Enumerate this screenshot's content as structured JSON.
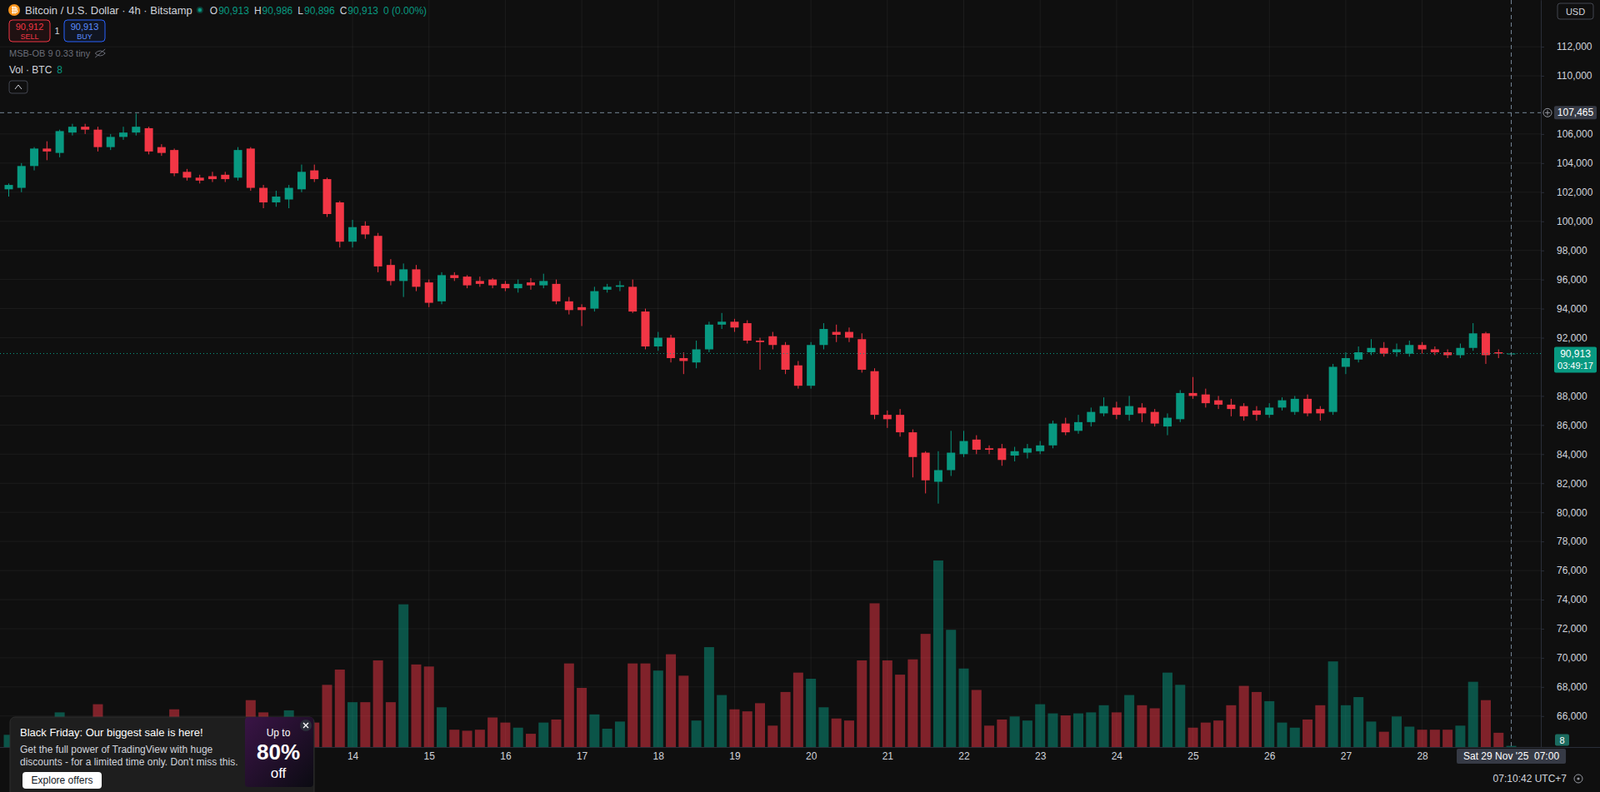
{
  "chart_data": {
    "type": "candlestick",
    "title": "Bitcoin / U.S. Dollar · 4h · Bitstamp",
    "categories": [
      null,
      null,
      null,
      null,
      null,
      null,
      null,
      null,
      null,
      null,
      null,
      null,
      null,
      null,
      null,
      null,
      null,
      null,
      null,
      null,
      null,
      null,
      null,
      null,
      null,
      null,
      null,
      "14",
      null,
      null,
      null,
      null,
      null,
      "15",
      null,
      null,
      null,
      null,
      null,
      "16",
      null,
      null,
      null,
      null,
      null,
      "17",
      null,
      null,
      null,
      null,
      null,
      "18",
      null,
      null,
      null,
      null,
      null,
      "19",
      null,
      null,
      null,
      null,
      null,
      "20",
      null,
      null,
      null,
      null,
      null,
      "21",
      null,
      null,
      null,
      null,
      null,
      "22",
      null,
      null,
      null,
      null,
      null,
      "23",
      null,
      null,
      null,
      null,
      null,
      "24",
      null,
      null,
      null,
      null,
      null,
      "25",
      null,
      null,
      null,
      null,
      null,
      "26",
      null,
      null,
      null,
      null,
      null,
      "27",
      null,
      null,
      null,
      null,
      null,
      "28",
      null,
      null,
      null,
      null,
      null,
      null,
      null
    ],
    "series": [
      {
        "type": "candlestick",
        "open": [
          102200,
          102300,
          103800,
          105000,
          104700,
          106100,
          106500,
          106300,
          105100,
          105800,
          106100,
          106400,
          105100,
          104900,
          103400,
          103000,
          103100,
          103200,
          103000,
          105000,
          102300,
          101300,
          101500,
          102200,
          103500,
          102900,
          101300,
          98600,
          99700,
          99000,
          97000,
          95900,
          96700,
          95800,
          94500,
          96300,
          96200,
          95900,
          96000,
          95700,
          95400,
          95800,
          95600,
          95700,
          94500,
          94100,
          94000,
          95300,
          95500,
          95500,
          93800,
          91400,
          92000,
          90600,
          90300,
          91200,
          92900,
          93100,
          93000,
          91800,
          92100,
          91500,
          90100,
          88700,
          91500,
          92400,
          92400,
          91900,
          89700,
          86700,
          86700,
          85500,
          84100,
          82100,
          82900,
          84000,
          85000,
          84400,
          84400,
          83900,
          84100,
          84200,
          84600,
          86100,
          85600,
          86200,
          86800,
          87200,
          86700,
          87200,
          86900,
          85900,
          86400,
          88200,
          88100,
          87700,
          87400,
          87300,
          87000,
          86700,
          87200,
          86900,
          87800,
          87100,
          86900,
          90000,
          90500,
          91000,
          91300,
          91000,
          90900,
          91500,
          91200,
          91000,
          90800,
          91300,
          92300,
          91000,
          90913
        ],
        "high": [
          102600,
          104000,
          105100,
          105500,
          106300,
          106700,
          106700,
          106500,
          106000,
          106500,
          107400,
          106500,
          105300,
          105000,
          103600,
          103200,
          103400,
          103400,
          105100,
          105100,
          102500,
          102100,
          102500,
          103900,
          103900,
          103000,
          101400,
          100100,
          100000,
          99200,
          97400,
          97100,
          97000,
          96000,
          96500,
          96500,
          96300,
          96200,
          96100,
          95900,
          96000,
          96100,
          96400,
          96000,
          94800,
          94300,
          95500,
          95700,
          95900,
          96000,
          94000,
          92400,
          92200,
          91000,
          91800,
          93100,
          93700,
          93300,
          93200,
          92000,
          92400,
          91700,
          90400,
          91700,
          93000,
          92900,
          92700,
          92300,
          89900,
          87000,
          87100,
          85700,
          84200,
          84200,
          85600,
          85600,
          85300,
          84600,
          84700,
          84500,
          84700,
          84900,
          86300,
          86500,
          86700,
          87200,
          87900,
          87600,
          88000,
          87500,
          87100,
          86800,
          88400,
          89300,
          88500,
          88000,
          87800,
          87500,
          87300,
          87500,
          87900,
          88000,
          88100,
          87300,
          90200,
          91000,
          91400,
          91900,
          91700,
          91600,
          91800,
          91700,
          91400,
          91200,
          91600,
          93000,
          92400,
          91200,
          90986
        ],
        "low": [
          101700,
          102000,
          103500,
          104200,
          104400,
          105900,
          106000,
          104800,
          104900,
          105600,
          105900,
          104600,
          104500,
          103100,
          102800,
          102600,
          102700,
          102700,
          102800,
          102100,
          100900,
          101000,
          100900,
          102000,
          102700,
          100300,
          98200,
          98200,
          98800,
          96500,
          95600,
          94800,
          95200,
          94100,
          94300,
          95900,
          95400,
          95500,
          95400,
          95200,
          95100,
          95300,
          95400,
          94300,
          93600,
          92800,
          93800,
          95100,
          95200,
          93700,
          91200,
          91100,
          90300,
          89500,
          89900,
          91000,
          92600,
          92400,
          91600,
          89800,
          91200,
          89500,
          88500,
          88500,
          91200,
          91700,
          91700,
          89600,
          86400,
          85800,
          85200,
          82400,
          81300,
          80600,
          82500,
          83800,
          84000,
          84000,
          83200,
          83500,
          83700,
          84000,
          84400,
          85300,
          85400,
          85900,
          86600,
          86400,
          86300,
          86200,
          85900,
          85300,
          86200,
          87800,
          87200,
          87100,
          86600,
          86300,
          86300,
          86500,
          87000,
          86700,
          86600,
          86300,
          86700,
          89500,
          90300,
          90800,
          90700,
          90700,
          90700,
          90900,
          90800,
          90600,
          90600,
          91100,
          90200,
          90600,
          90896
        ],
        "close": [
          102500,
          103800,
          105000,
          104800,
          106200,
          106500,
          106300,
          105100,
          105800,
          106100,
          106500,
          104800,
          104700,
          103300,
          103000,
          102800,
          102900,
          102900,
          104900,
          102300,
          101300,
          101700,
          102300,
          103400,
          102900,
          100500,
          98600,
          99600,
          99100,
          96900,
          95900,
          96700,
          95500,
          94400,
          96300,
          96100,
          95600,
          95700,
          95600,
          95400,
          95700,
          95600,
          95900,
          94500,
          93900,
          93900,
          95200,
          95500,
          95600,
          93800,
          91400,
          92000,
          90600,
          90400,
          91200,
          92900,
          93100,
          92700,
          91800,
          91700,
          91500,
          89800,
          88700,
          91500,
          92600,
          92200,
          92000,
          89800,
          86700,
          86400,
          85500,
          83800,
          82200,
          82900,
          84100,
          84900,
          84300,
          84300,
          83600,
          84200,
          84400,
          84600,
          86100,
          85500,
          86200,
          86900,
          87300,
          86700,
          87300,
          86800,
          86100,
          86500,
          88200,
          88000,
          87500,
          87400,
          87100,
          86600,
          86700,
          87200,
          87700,
          87800,
          86800,
          86800,
          90000,
          90600,
          91000,
          91300,
          90900,
          91200,
          91500,
          91200,
          91000,
          90800,
          91300,
          92300,
          90800,
          90913,
          90913
        ]
      },
      {
        "name": "Vol · BTC",
        "type": "bar",
        "axis": "y2",
        "values": [
          84,
          98,
          126,
          140,
          238,
          140,
          126,
          294,
          168,
          112,
          154,
          168,
          126,
          259,
          140,
          98,
          84,
          98,
          182,
          322,
          238,
          154,
          252,
          182,
          168,
          427,
          532,
          308,
          308,
          595,
          308,
          980,
          567,
          553,
          273,
          119,
          112,
          119,
          203,
          168,
          133,
          91,
          168,
          189,
          574,
          406,
          224,
          126,
          175,
          574,
          574,
          525,
          637,
          490,
          182,
          686,
          357,
          259,
          245,
          301,
          147,
          378,
          511,
          469,
          273,
          196,
          182,
          595,
          987,
          595,
          497,
          602,
          777,
          1281,
          805,
          539,
          392,
          147,
          189,
          210,
          182,
          294,
          231,
          217,
          231,
          238,
          287,
          238,
          357,
          287,
          266,
          511,
          427,
          133,
          168,
          182,
          287,
          420,
          378,
          315,
          168,
          133,
          189,
          287,
          588,
          287,
          343,
          175,
          105,
          210,
          140,
          119,
          119,
          119,
          147,
          448,
          322,
          98,
          8
        ]
      }
    ],
    "ylim": [
      63870,
      115210
    ],
    "yticks": [
      {
        "value": 66000,
        "label": "66,000"
      },
      {
        "value": 68000,
        "label": "68,000"
      },
      {
        "value": 70000,
        "label": "70,000"
      },
      {
        "value": 72000,
        "label": "72,000"
      },
      {
        "value": 74000,
        "label": "74,000"
      },
      {
        "value": 76000,
        "label": "76,000"
      },
      {
        "value": 78000,
        "label": "78,000"
      },
      {
        "value": 80000,
        "label": "80,000"
      },
      {
        "value": 82000,
        "label": "82,000"
      },
      {
        "value": 84000,
        "label": "84,000"
      },
      {
        "value": 86000,
        "label": "86,000"
      },
      {
        "value": 88000,
        "label": "88,000"
      },
      {
        "value": 92000,
        "label": "92,000"
      },
      {
        "value": 94000,
        "label": "94,000"
      },
      {
        "value": 96000,
        "label": "96,000"
      },
      {
        "value": 98000,
        "label": "98,000"
      },
      {
        "value": 100000,
        "label": "100,000"
      },
      {
        "value": 102000,
        "label": "102,000"
      },
      {
        "value": 104000,
        "label": "104,000"
      },
      {
        "value": 106000,
        "label": "106,000"
      },
      {
        "value": 110000,
        "label": "110,000"
      },
      {
        "value": 112000,
        "label": "112,000"
      }
    ],
    "y2lim": [
      0,
      5130
    ],
    "grid": true
  },
  "header": {
    "ohlc": [
      {
        "label": "O",
        "value": "90,913"
      },
      {
        "label": "H",
        "value": "90,986"
      },
      {
        "label": "L",
        "value": "90,896"
      },
      {
        "label": "C",
        "value": "90,913"
      }
    ],
    "change": "0 (0.00%)",
    "indicator": "MSB-OB 9 0.33 tiny"
  },
  "trade": {
    "sell_price": "90,912",
    "sell_label": "SELL",
    "quantity": "1",
    "buy_price": "90,913",
    "buy_label": "BUY"
  },
  "currency": "USD",
  "price_labels": {
    "last_price": "90,913",
    "countdown": "03:49:17"
  },
  "crosshair": {
    "price": {
      "value": 107465,
      "label": "107,465"
    },
    "time": "Sat 29 Nov '25  07:00"
  },
  "clock": "07:10:42 UTC+7",
  "popup": {
    "title": "Black Friday: Our biggest sale is here!",
    "body": "Get the full power of TradingView with huge discounts - for a limited time only. Don't miss this.",
    "button": "Explore offers",
    "badge_top": "Up to",
    "badge_value": "80%",
    "badge_bottom": "off"
  }
}
